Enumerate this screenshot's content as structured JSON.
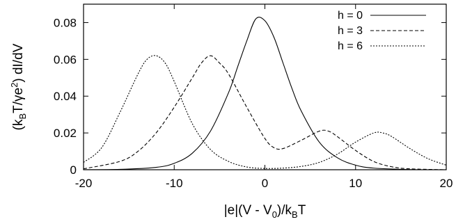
{
  "chart_data": {
    "type": "line",
    "title": "",
    "xlabel_parts": [
      "|e|(V - V",
      "0",
      ")/k",
      "B",
      "T"
    ],
    "ylabel_parts": [
      "(k",
      "B",
      "T/γe",
      "2",
      ") dI/dV"
    ],
    "xlim": [
      -20,
      20
    ],
    "ylim": [
      0,
      0.09
    ],
    "x_ticks": [
      -20,
      -10,
      0,
      10,
      20
    ],
    "x_tick_labels": [
      "-20",
      "-10",
      "0",
      "10",
      "20"
    ],
    "y_ticks": [
      0,
      0.02,
      0.04,
      0.06,
      0.08
    ],
    "y_tick_labels": [
      "0",
      "0.02",
      "0.04",
      "0.06",
      "0.08"
    ],
    "grid": false,
    "legend": "top-right",
    "series": [
      {
        "name": "h = 0",
        "dash": "solid",
        "x": [
          -20,
          -16,
          -12,
          -10,
          -8,
          -6,
          -4,
          -3,
          -2,
          -1,
          0,
          1,
          2,
          3,
          4,
          6,
          8,
          10,
          12,
          16,
          20
        ],
        "y": [
          0.0,
          0.0002,
          0.0013,
          0.0035,
          0.009,
          0.021,
          0.042,
          0.056,
          0.07,
          0.082,
          0.081,
          0.072,
          0.058,
          0.044,
          0.032,
          0.015,
          0.0065,
          0.0025,
          0.0009,
          0.0001,
          0.0
        ]
      },
      {
        "name": "h = 3",
        "dash": "dashed",
        "x": [
          -20,
          -16,
          -14,
          -12,
          -10,
          -8,
          -7,
          -6,
          -5,
          -4,
          -2,
          0,
          1,
          2,
          4,
          6,
          7,
          8,
          10,
          12,
          14,
          16,
          20
        ],
        "y": [
          0.0005,
          0.0045,
          0.01,
          0.02,
          0.034,
          0.05,
          0.058,
          0.062,
          0.058,
          0.052,
          0.034,
          0.017,
          0.012,
          0.0115,
          0.016,
          0.021,
          0.021,
          0.018,
          0.0105,
          0.0045,
          0.0016,
          0.0005,
          0.0
        ]
      },
      {
        "name": "h = 6",
        "dash": "dotted",
        "x": [
          -20,
          -18,
          -16,
          -14,
          -13,
          -12,
          -11,
          -10,
          -8,
          -6,
          -4,
          -2,
          0,
          2,
          4,
          6,
          8,
          10,
          12,
          13,
          14,
          16,
          18,
          20
        ],
        "y": [
          0.004,
          0.012,
          0.031,
          0.052,
          0.06,
          0.062,
          0.058,
          0.048,
          0.025,
          0.011,
          0.0045,
          0.0015,
          0.0007,
          0.0009,
          0.0018,
          0.004,
          0.0085,
          0.015,
          0.02,
          0.02,
          0.018,
          0.0115,
          0.006,
          0.0025
        ]
      }
    ]
  }
}
